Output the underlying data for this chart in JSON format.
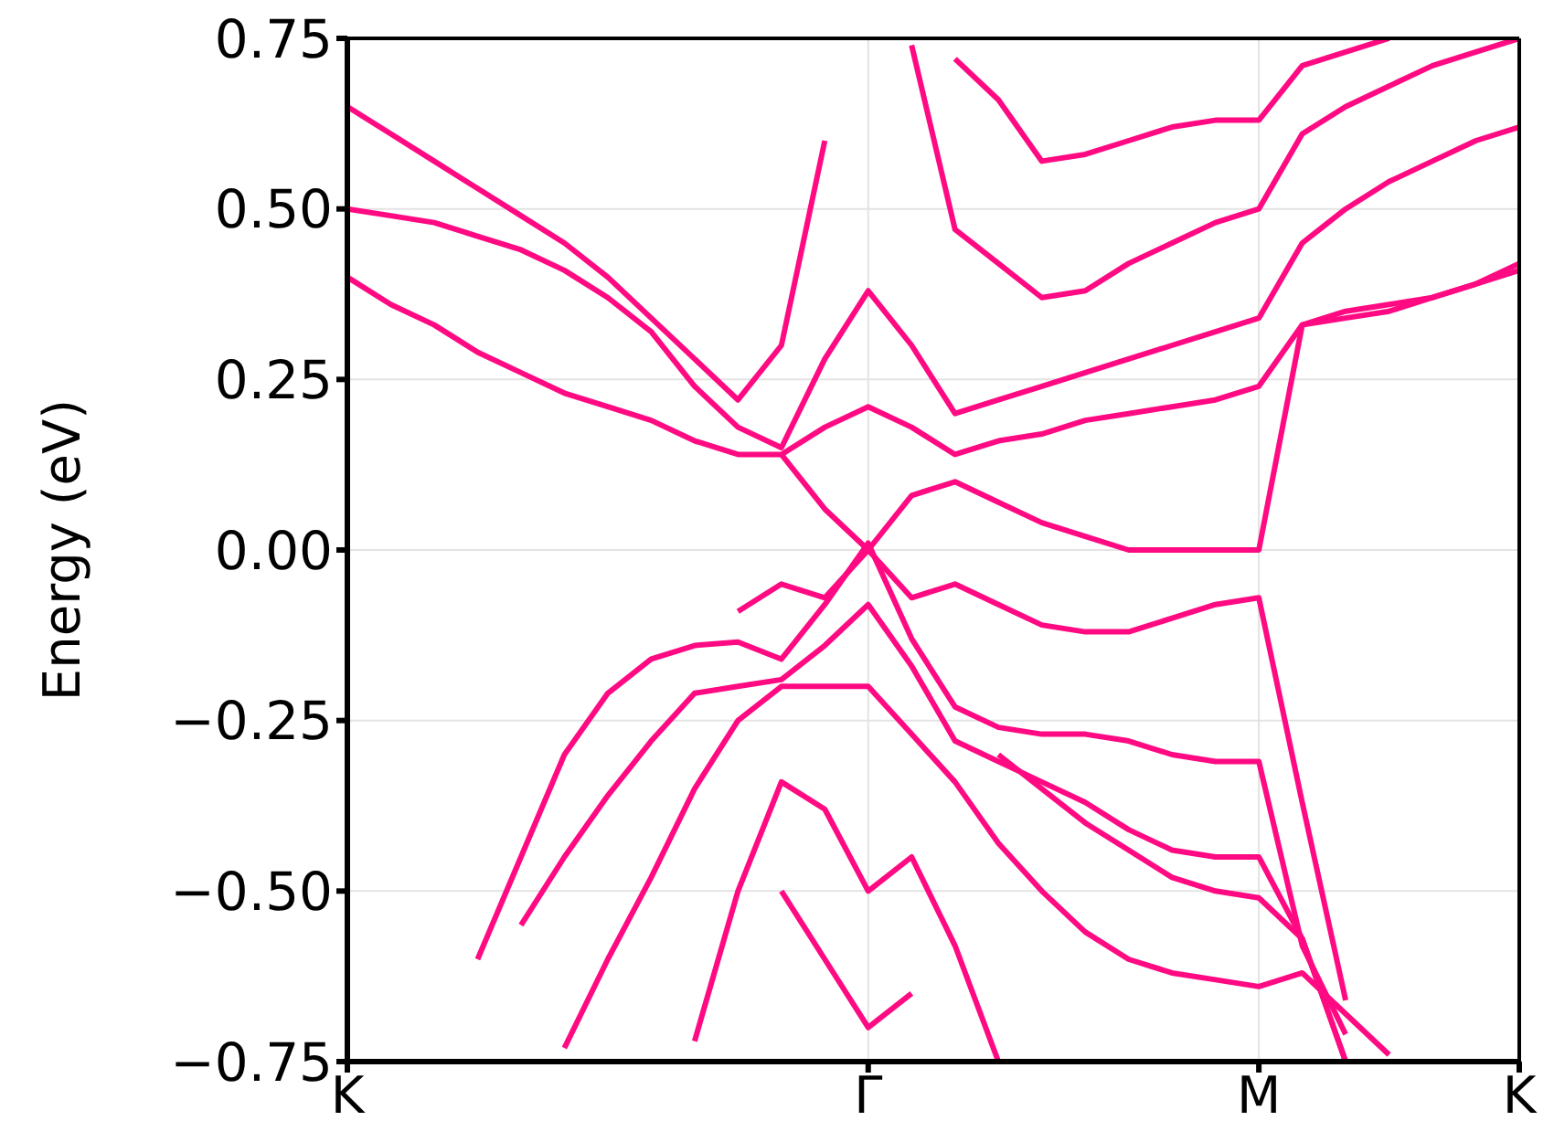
{
  "chart_data": {
    "type": "line",
    "ylabel": "Energy (eV)",
    "categories": [
      "K",
      null,
      null,
      null,
      null,
      null,
      null,
      null,
      null,
      null,
      null,
      null,
      "Γ",
      null,
      null,
      null,
      null,
      null,
      null,
      null,
      null,
      "M",
      null,
      null,
      null,
      null,
      null,
      "K"
    ],
    "ylim": [
      -0.75,
      0.75
    ],
    "yticks": [
      {
        "value": -0.75,
        "label": "−0.75"
      },
      {
        "value": -0.5,
        "label": "−0.50"
      },
      {
        "value": -0.25,
        "label": "−0.25"
      },
      {
        "value": 0,
        "label": "0.00"
      },
      {
        "value": 0.25,
        "label": "0.25"
      },
      {
        "value": 0.5,
        "label": "0.50"
      },
      {
        "value": 0.75,
        "label": "0.75"
      }
    ],
    "grid": true,
    "legend": false,
    "marker": "none",
    "line_style": "solid",
    "series": [
      {
        "color": "#ff0a82",
        "values": [
          null,
          null,
          null,
          -0.6,
          -0.45,
          -0.3,
          -0.21,
          -0.16,
          -0.14,
          -0.135,
          -0.16,
          -0.08,
          0.01,
          -0.13,
          -0.23,
          -0.26,
          -0.27,
          -0.27,
          -0.28,
          -0.3,
          -0.31,
          -0.31,
          -0.58,
          -0.71,
          null,
          null,
          null,
          null
        ]
      },
      {
        "color": "#ff0a82",
        "values": [
          null,
          null,
          null,
          null,
          null,
          null,
          null,
          null,
          null,
          -0.09,
          -0.05,
          -0.07,
          0.0,
          0.08,
          0.1,
          0.07,
          0.04,
          0.02,
          0.0,
          0.0,
          0.0,
          0.0,
          0.33,
          0.35,
          0.36,
          0.37,
          0.39,
          0.42
        ]
      },
      {
        "color": "#ff0a82",
        "values": [
          null,
          null,
          null,
          null,
          null,
          null,
          null,
          null,
          null,
          null,
          0.14,
          0.06,
          0.0,
          -0.07,
          -0.05,
          -0.08,
          -0.11,
          -0.12,
          -0.12,
          -0.1,
          -0.08,
          -0.07,
          -0.37,
          -0.66,
          null,
          null,
          null,
          null
        ]
      },
      {
        "color": "#ff0a82",
        "values": [
          0.4,
          0.36,
          0.33,
          0.29,
          0.26,
          0.23,
          0.21,
          0.19,
          0.16,
          0.14,
          0.14,
          0.18,
          0.21,
          0.18,
          0.14,
          0.16,
          0.17,
          0.19,
          0.2,
          0.21,
          0.22,
          0.24,
          0.33,
          0.34,
          0.35,
          0.37,
          0.39,
          0.41
        ]
      },
      {
        "color": "#ff0a82",
        "values": [
          0.5,
          0.49,
          0.48,
          0.46,
          0.44,
          0.41,
          0.37,
          0.32,
          0.24,
          0.18,
          0.15,
          0.28,
          0.38,
          0.3,
          0.2,
          0.22,
          0.24,
          0.26,
          0.28,
          0.3,
          0.32,
          0.34,
          0.45,
          0.5,
          0.54,
          0.57,
          0.6,
          0.62
        ]
      },
      {
        "color": "#ff0a82",
        "values": [
          0.65,
          0.61,
          0.57,
          0.53,
          0.49,
          0.45,
          0.4,
          0.34,
          0.28,
          0.22,
          0.3,
          0.6,
          null,
          null,
          null,
          null,
          null,
          null,
          null,
          null,
          null,
          null,
          null,
          null,
          null,
          null,
          null,
          null
        ]
      },
      {
        "color": "#ff0a82",
        "values": [
          null,
          null,
          null,
          null,
          null,
          null,
          null,
          null,
          null,
          null,
          null,
          null,
          null,
          0.74,
          0.47,
          0.42,
          0.37,
          0.38,
          0.42,
          0.45,
          0.48,
          0.5,
          0.61,
          0.65,
          0.68,
          0.71,
          0.73,
          0.75
        ]
      },
      {
        "color": "#ff0a82",
        "values": [
          null,
          null,
          null,
          null,
          null,
          null,
          null,
          null,
          null,
          null,
          null,
          null,
          null,
          null,
          0.72,
          0.66,
          0.57,
          0.58,
          0.6,
          0.62,
          0.63,
          0.63,
          0.71,
          0.73,
          0.75,
          null,
          null,
          null
        ]
      },
      {
        "color": "#ff0a82",
        "values": [
          null,
          null,
          null,
          null,
          -0.55,
          -0.45,
          -0.36,
          -0.28,
          -0.21,
          -0.2,
          -0.19,
          -0.14,
          -0.08,
          -0.17,
          -0.28,
          -0.31,
          -0.34,
          -0.37,
          -0.41,
          -0.44,
          -0.45,
          -0.45,
          -0.57,
          -0.75,
          null,
          null,
          null,
          null
        ]
      },
      {
        "color": "#ff0a82",
        "values": [
          null,
          null,
          null,
          null,
          null,
          -0.73,
          -0.6,
          -0.48,
          -0.35,
          -0.25,
          -0.2,
          -0.2,
          -0.2,
          -0.27,
          -0.34,
          -0.43,
          -0.5,
          -0.56,
          -0.6,
          -0.62,
          -0.63,
          -0.64,
          -0.62,
          -0.68,
          -0.74,
          null,
          null,
          null
        ]
      },
      {
        "color": "#ff0a82",
        "values": [
          null,
          null,
          null,
          null,
          null,
          null,
          null,
          null,
          -0.72,
          -0.5,
          -0.34,
          -0.38,
          -0.5,
          -0.45,
          -0.58,
          -0.75,
          null,
          null,
          null,
          null,
          null,
          null,
          null,
          null,
          null,
          null,
          null,
          null
        ]
      },
      {
        "color": "#ff0a82",
        "values": [
          null,
          null,
          null,
          null,
          null,
          null,
          null,
          null,
          null,
          null,
          -0.5,
          -0.6,
          -0.7,
          -0.65,
          null,
          null,
          null,
          null,
          null,
          null,
          null,
          null,
          null,
          null,
          null,
          null,
          null,
          null
        ]
      },
      {
        "color": "#ff0a82",
        "values": [
          null,
          null,
          null,
          null,
          null,
          null,
          null,
          null,
          null,
          null,
          null,
          null,
          null,
          null,
          null,
          -0.3,
          -0.35,
          -0.4,
          -0.44,
          -0.48,
          -0.5,
          -0.51,
          -0.57,
          -0.75,
          null,
          null,
          null,
          null
        ]
      }
    ]
  }
}
